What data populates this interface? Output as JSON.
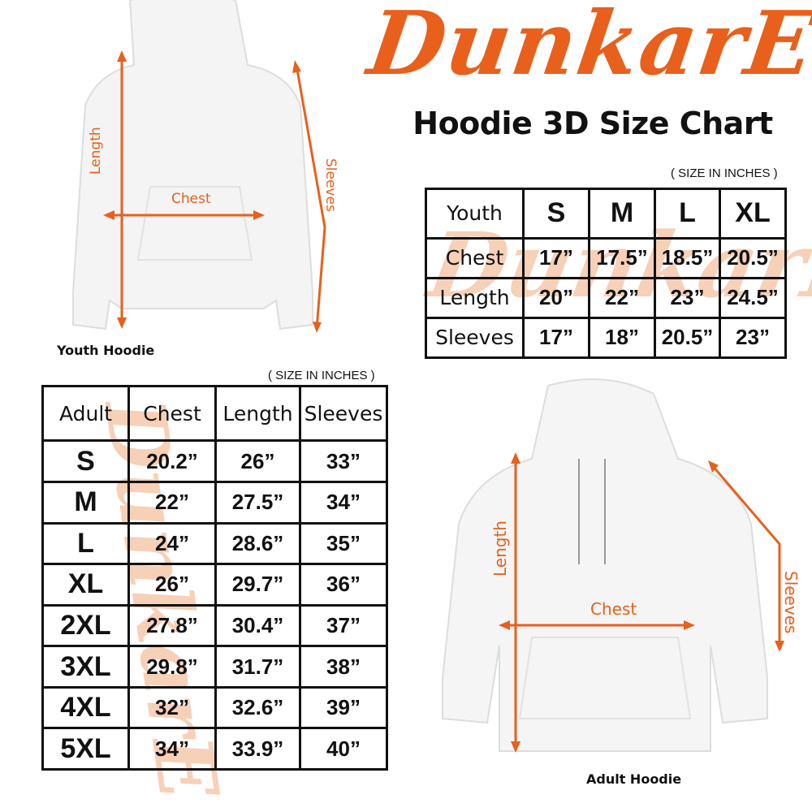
{
  "brand": {
    "logo_text": "DunkarE",
    "color": "#e8601c"
  },
  "title": "Hoodie 3D Size Chart",
  "youth": {
    "unit_note": "( SIZE IN INCHES )",
    "header": [
      "Youth",
      "S",
      "M",
      "L",
      "XL"
    ],
    "rows": [
      [
        "Chest",
        "17”",
        "17.5”",
        "18.5”",
        "20.5”"
      ],
      [
        "Length",
        "20”",
        "22”",
        "23”",
        "24.5”"
      ],
      [
        "Sleeves",
        "17”",
        "18”",
        "20.5”",
        "23”"
      ]
    ],
    "image_label": "Youth Hoodie",
    "measure_labels": {
      "length": "Length",
      "chest": "Chest",
      "sleeves": "Sleeves"
    }
  },
  "adult": {
    "unit_note": "( SIZE IN INCHES )",
    "header": [
      "Adult",
      "Chest",
      "Length",
      "Sleeves"
    ],
    "rows": [
      [
        "S",
        "20.2”",
        "26”",
        "33”"
      ],
      [
        "M",
        "22”",
        "27.5”",
        "34”"
      ],
      [
        "L",
        "24”",
        "28.6”",
        "35”"
      ],
      [
        "XL",
        "26”",
        "29.7”",
        "36”"
      ],
      [
        "2XL",
        "27.8”",
        "30.4”",
        "37”"
      ],
      [
        "3XL",
        "29.8”",
        "31.7”",
        "38”"
      ],
      [
        "4XL",
        "32”",
        "32.6”",
        "39”"
      ],
      [
        "5XL",
        "34”",
        "33.9”",
        "40”"
      ]
    ],
    "image_label": "Adult Hoodie",
    "measure_labels": {
      "length": "Length",
      "chest": "Chest",
      "sleeves": "Sleeves"
    }
  }
}
